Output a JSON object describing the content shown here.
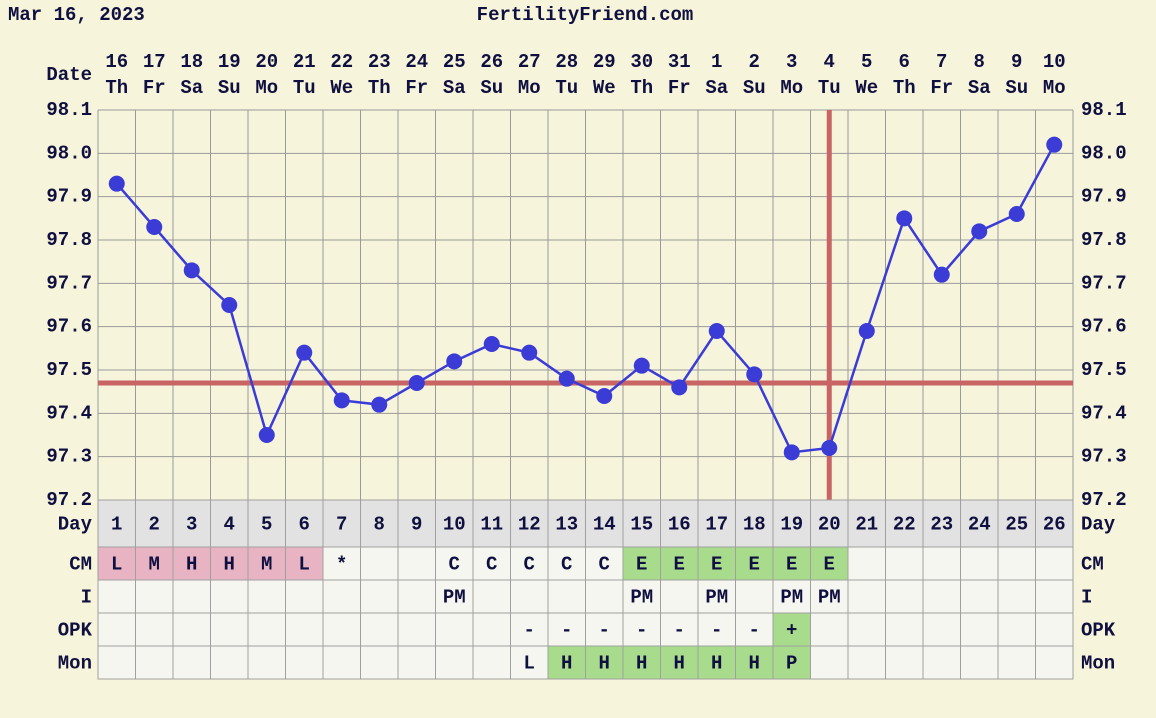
{
  "header": {
    "date": "Mar 16, 2023",
    "site": "FertilityFriend.com"
  },
  "chart_data": {
    "type": "line",
    "date_label": "Date",
    "dates": [
      "16",
      "17",
      "18",
      "19",
      "20",
      "21",
      "22",
      "23",
      "24",
      "25",
      "26",
      "27",
      "28",
      "29",
      "30",
      "31",
      "1",
      "2",
      "3",
      "4",
      "5",
      "6",
      "7",
      "8",
      "9",
      "10"
    ],
    "weekdays": [
      "Th",
      "Fr",
      "Sa",
      "Su",
      "Mo",
      "Tu",
      "We",
      "Th",
      "Fr",
      "Sa",
      "Su",
      "Mo",
      "Tu",
      "We",
      "Th",
      "Fr",
      "Sa",
      "Su",
      "Mo",
      "Tu",
      "We",
      "Th",
      "Fr",
      "Sa",
      "Su",
      "Mo"
    ],
    "values": [
      97.93,
      97.83,
      97.73,
      97.65,
      97.35,
      97.54,
      97.43,
      97.42,
      97.47,
      97.52,
      97.56,
      97.54,
      97.48,
      97.44,
      97.51,
      97.46,
      97.59,
      97.49,
      97.31,
      97.32,
      97.59,
      97.85,
      97.72,
      97.82,
      97.86,
      98.02
    ],
    "color": "#3b3bd6",
    "ylim": [
      97.2,
      98.1
    ],
    "yticks": [
      97.2,
      97.3,
      97.4,
      97.5,
      97.6,
      97.7,
      97.8,
      97.9,
      {
        "value": 98,
        "label": "98.0"
      },
      98.1
    ],
    "grid": true,
    "coverline": 97.47,
    "ovulation_day": 20,
    "marker_color": "#c86464"
  },
  "table": {
    "rows": [
      {
        "label": "Day",
        "cells": [
          1,
          2,
          3,
          4,
          5,
          6,
          7,
          8,
          9,
          10,
          11,
          12,
          13,
          14,
          15,
          16,
          17,
          18,
          19,
          20,
          21,
          22,
          23,
          24,
          25,
          26
        ]
      },
      {
        "label": "CM",
        "cells": [
          "L",
          "M",
          "H",
          "H",
          "M",
          "L",
          "*",
          null,
          null,
          "C",
          "C",
          "C",
          "C",
          "C",
          "E",
          "E",
          "E",
          "E",
          "E",
          "E",
          null,
          null,
          null,
          null,
          null,
          null
        ],
        "colors": [
          "#e8b4c4",
          "#e8b4c4",
          "#e8b4c4",
          "#e8b4c4",
          "#e8b4c4",
          "#e8b4c4",
          null,
          null,
          null,
          null,
          null,
          null,
          null,
          null,
          "#a8dc8c",
          "#a8dc8c",
          "#a8dc8c",
          "#a8dc8c",
          "#a8dc8c",
          "#a8dc8c",
          null,
          null,
          null,
          null,
          null,
          null
        ]
      },
      {
        "label": "I",
        "cells": [
          null,
          null,
          null,
          null,
          null,
          null,
          null,
          null,
          null,
          "PM",
          null,
          null,
          null,
          null,
          "PM",
          null,
          "PM",
          null,
          "PM",
          "PM",
          null,
          null,
          null,
          null,
          null,
          null
        ]
      },
      {
        "label": "OPK",
        "cells": [
          null,
          null,
          null,
          null,
          null,
          null,
          null,
          null,
          null,
          null,
          null,
          "-",
          "-",
          "-",
          "-",
          "-",
          "-",
          "-",
          "+",
          null,
          null,
          null,
          null,
          null,
          null,
          null
        ],
        "colors": [
          null,
          null,
          null,
          null,
          null,
          null,
          null,
          null,
          null,
          null,
          null,
          null,
          null,
          null,
          null,
          null,
          null,
          null,
          "#a8dc8c",
          null,
          null,
          null,
          null,
          null,
          null,
          null
        ]
      },
      {
        "label": "Mon",
        "cells": [
          null,
          null,
          null,
          null,
          null,
          null,
          null,
          null,
          null,
          null,
          null,
          "L",
          "H",
          "H",
          "H",
          "H",
          "H",
          "H",
          "P",
          null,
          null,
          null,
          null,
          null,
          null,
          null
        ],
        "colors": [
          null,
          null,
          null,
          null,
          null,
          null,
          null,
          null,
          null,
          null,
          null,
          null,
          "#a8dc8c",
          "#a8dc8c",
          "#a8dc8c",
          "#a8dc8c",
          "#a8dc8c",
          "#a8dc8c",
          "#a8dc8c",
          null,
          null,
          null,
          null,
          null,
          null,
          null
        ]
      }
    ]
  }
}
